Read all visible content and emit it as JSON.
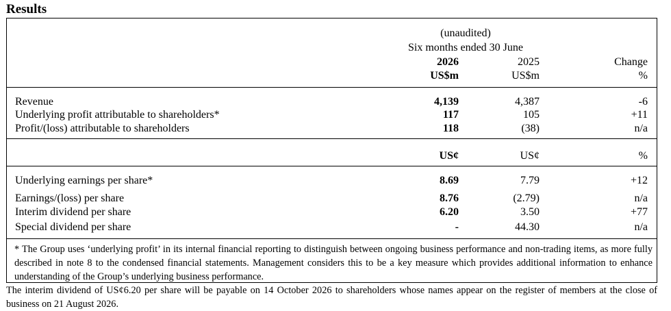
{
  "title": "Results",
  "header": {
    "unaudited": "(unaudited)",
    "period": "Six months ended 30 June",
    "year_current": "2026",
    "year_prior": "2025",
    "change": "Change",
    "unit_current": "US$m",
    "unit_prior": "US$m",
    "unit_change": "%"
  },
  "section1": [
    {
      "label": "Revenue",
      "current": "4,139",
      "prior": "4,387",
      "change": "-6"
    },
    {
      "label": "Underlying profit attributable to shareholders*",
      "current": "117",
      "prior": "105",
      "change": "+11"
    },
    {
      "label": "Profit/(loss) attributable to shareholders",
      "current": "118",
      "prior": "(38)",
      "change": "n/a"
    }
  ],
  "subheader": {
    "current": "US¢",
    "prior": "US¢",
    "change": "%"
  },
  "section2": [
    {
      "label": "Underlying earnings per share*",
      "current": "8.69",
      "prior": "7.79",
      "change": "+12"
    },
    {
      "label": "Earnings/(loss) per share",
      "current": "8.76",
      "prior": "(2.79)",
      "change": "n/a"
    },
    {
      "label": "Interim dividend per share",
      "current": "6.20",
      "prior": "3.50",
      "change": "+77"
    },
    {
      "label": "Special dividend per share",
      "current": "-",
      "prior": "44.30",
      "change": "n/a"
    }
  ],
  "footnote": "* The Group uses ‘underlying profit’ in its internal financial reporting to distinguish between ongoing business performance and non-trading items, as more fully described in note 8 to the condensed financial statements.  Management considers this to be a key measure which provides additional information to enhance understanding of the Group’s underlying business performance.",
  "closing": "The interim dividend of US¢6.20 per share will be payable on 14 October 2026 to shareholders whose names appear on the register of members at the close of business on 21 August 2026."
}
